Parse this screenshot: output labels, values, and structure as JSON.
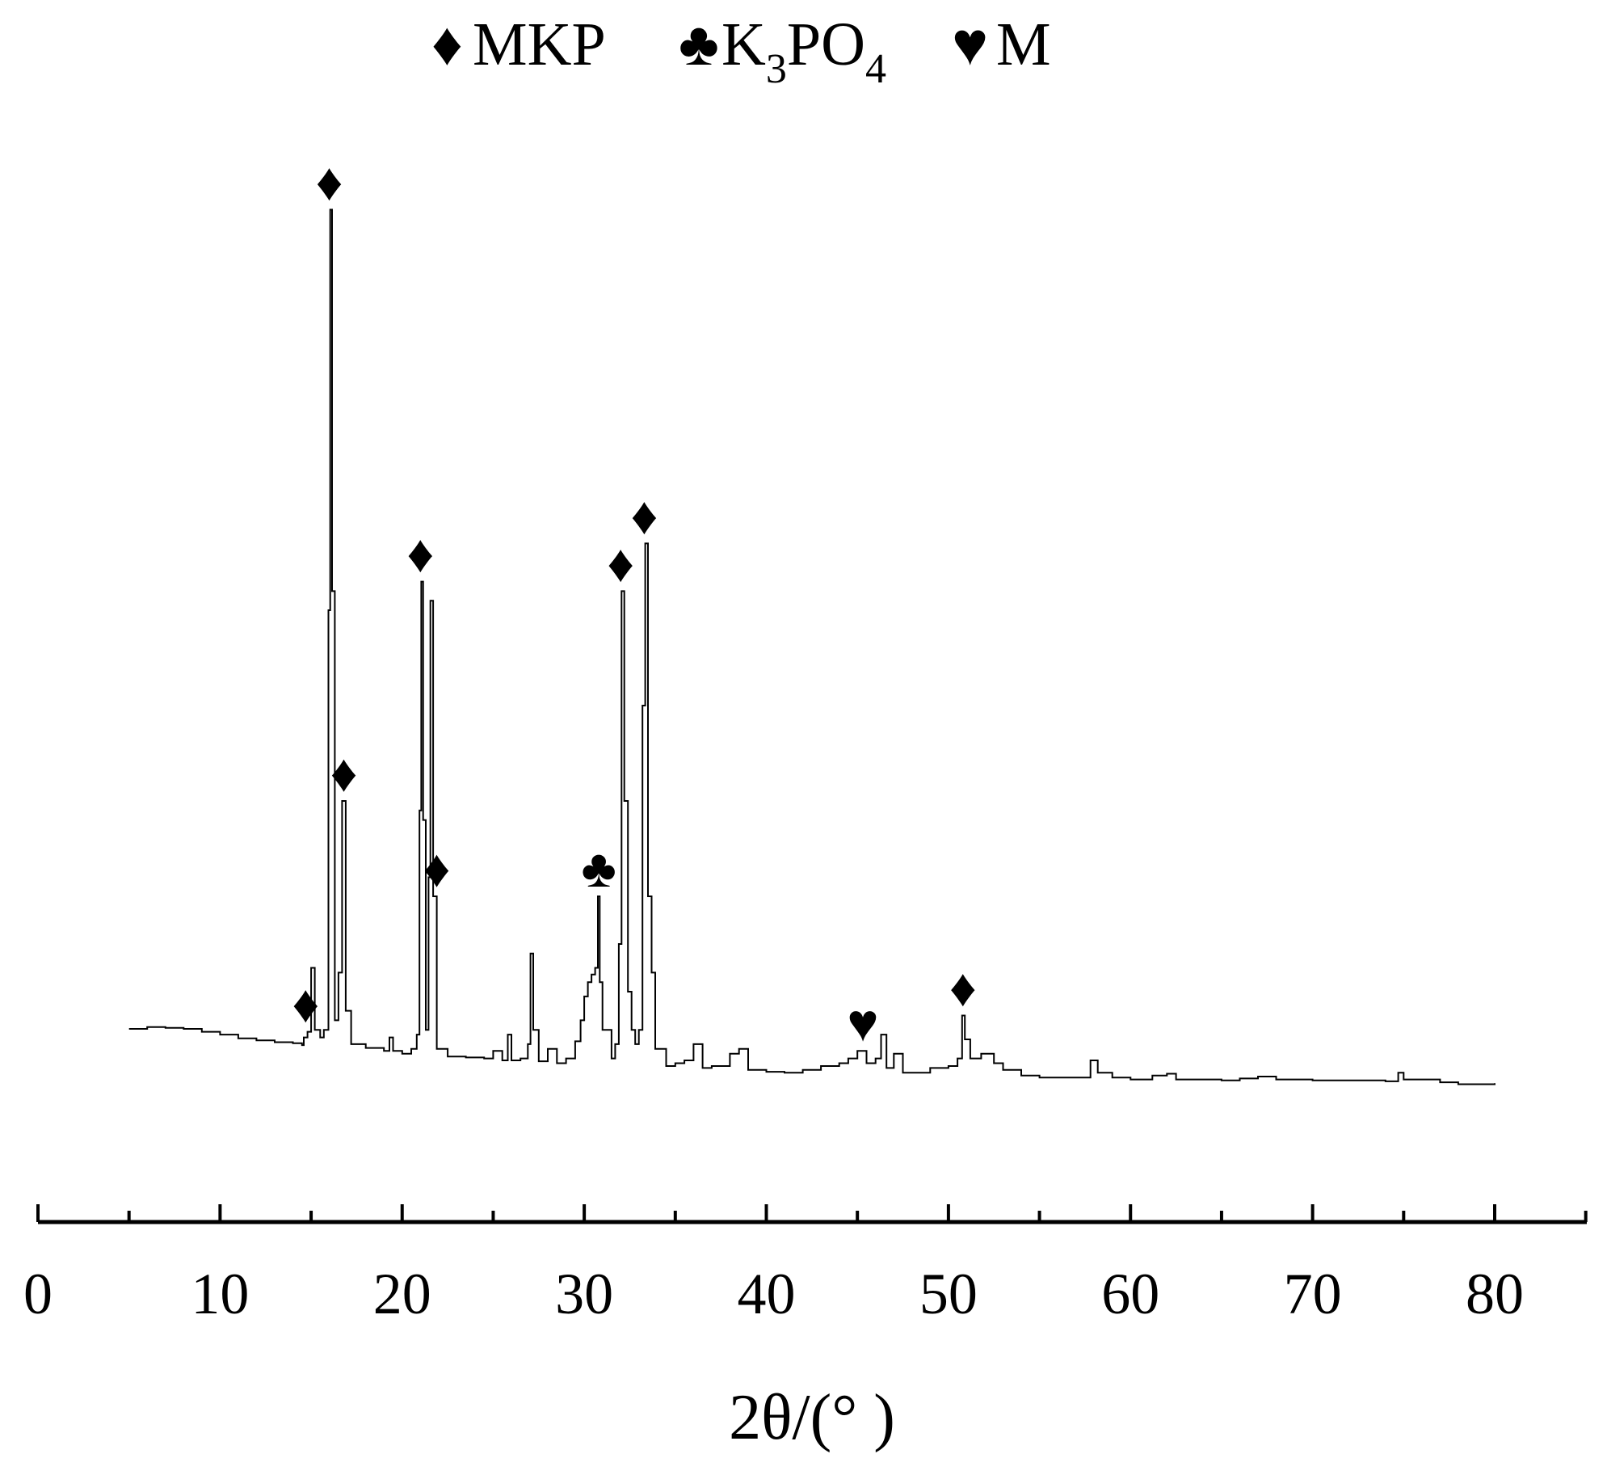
{
  "legend": {
    "items": [
      {
        "symbol": "♦",
        "label": "MKP",
        "sub": ""
      },
      {
        "symbol": "♣",
        "label": "K",
        "sub": "3",
        "label2": "PO",
        "sub2": "4"
      },
      {
        "symbol": "♥",
        "label": "M",
        "sub": ""
      }
    ]
  },
  "chart_data": {
    "type": "line",
    "xlabel": "2θ/(° )",
    "xlim": [
      0,
      85
    ],
    "x_ticks": [
      0,
      10,
      20,
      30,
      40,
      50,
      60,
      70,
      80
    ],
    "x_tick_labels": [
      "0",
      "10",
      "20",
      "30",
      "40",
      "50",
      "60",
      "70",
      "80"
    ],
    "ylim": [
      0,
      1000
    ],
    "y_axis_shown": false,
    "grid": false,
    "legend_position": "top-center",
    "series": [
      {
        "color": "#000000",
        "points": [
          [
            5,
            61
          ],
          [
            6,
            63
          ],
          [
            7,
            62
          ],
          [
            8,
            61
          ],
          [
            9,
            58
          ],
          [
            10,
            55
          ],
          [
            11,
            51
          ],
          [
            12,
            49
          ],
          [
            13,
            47
          ],
          [
            14,
            46
          ],
          [
            14.5,
            44
          ],
          [
            14.6,
            52
          ],
          [
            14.8,
            58
          ],
          [
            15.0,
            125
          ],
          [
            15.2,
            60
          ],
          [
            15.5,
            52
          ],
          [
            15.7,
            60
          ],
          [
            15.95,
            500
          ],
          [
            16.05,
            920
          ],
          [
            16.15,
            520
          ],
          [
            16.3,
            70
          ],
          [
            16.5,
            120
          ],
          [
            16.7,
            300
          ],
          [
            16.9,
            80
          ],
          [
            17.2,
            45
          ],
          [
            18,
            41
          ],
          [
            19,
            38
          ],
          [
            19.3,
            52
          ],
          [
            19.5,
            38
          ],
          [
            20,
            35
          ],
          [
            20.5,
            40
          ],
          [
            20.8,
            55
          ],
          [
            20.95,
            290
          ],
          [
            21.05,
            530
          ],
          [
            21.15,
            280
          ],
          [
            21.3,
            60
          ],
          [
            21.45,
            220
          ],
          [
            21.55,
            510
          ],
          [
            21.7,
            200
          ],
          [
            21.9,
            40
          ],
          [
            22.5,
            32
          ],
          [
            23.5,
            31
          ],
          [
            24.5,
            30
          ],
          [
            25,
            38
          ],
          [
            25.5,
            28
          ],
          [
            25.8,
            55
          ],
          [
            26,
            28
          ],
          [
            26.5,
            30
          ],
          [
            26.9,
            45
          ],
          [
            27.05,
            140
          ],
          [
            27.2,
            60
          ],
          [
            27.5,
            27
          ],
          [
            28,
            40
          ],
          [
            28.5,
            25
          ],
          [
            29,
            30
          ],
          [
            29.5,
            48
          ],
          [
            29.8,
            70
          ],
          [
            30.0,
            95
          ],
          [
            30.2,
            110
          ],
          [
            30.4,
            118
          ],
          [
            30.6,
            125
          ],
          [
            30.75,
            200
          ],
          [
            30.85,
            110
          ],
          [
            31,
            60
          ],
          [
            31.5,
            30
          ],
          [
            31.7,
            45
          ],
          [
            31.9,
            150
          ],
          [
            32.05,
            520
          ],
          [
            32.2,
            300
          ],
          [
            32.4,
            100
          ],
          [
            32.6,
            60
          ],
          [
            32.8,
            45
          ],
          [
            33.0,
            60
          ],
          [
            33.2,
            400
          ],
          [
            33.35,
            570
          ],
          [
            33.5,
            200
          ],
          [
            33.7,
            120
          ],
          [
            33.9,
            40
          ],
          [
            34.5,
            22
          ],
          [
            35,
            25
          ],
          [
            35.5,
            28
          ],
          [
            36,
            45
          ],
          [
            36.5,
            20
          ],
          [
            37,
            22
          ],
          [
            38,
            35
          ],
          [
            38.5,
            40
          ],
          [
            39,
            18
          ],
          [
            40,
            16
          ],
          [
            41,
            15
          ],
          [
            42,
            18
          ],
          [
            43,
            22
          ],
          [
            44,
            25
          ],
          [
            44.5,
            30
          ],
          [
            45,
            38
          ],
          [
            45.5,
            25
          ],
          [
            46,
            30
          ],
          [
            46.3,
            55
          ],
          [
            46.6,
            20
          ],
          [
            47,
            35
          ],
          [
            47.5,
            15
          ],
          [
            48,
            15
          ],
          [
            49,
            20
          ],
          [
            50,
            22
          ],
          [
            50.5,
            30
          ],
          [
            50.75,
            75
          ],
          [
            50.9,
            50
          ],
          [
            51.2,
            30
          ],
          [
            51.8,
            35
          ],
          [
            52.5,
            25
          ],
          [
            53,
            18
          ],
          [
            54,
            12
          ],
          [
            55,
            10
          ],
          [
            56,
            10
          ],
          [
            57,
            10
          ],
          [
            57.8,
            28
          ],
          [
            58.2,
            15
          ],
          [
            59,
            10
          ],
          [
            60,
            8
          ],
          [
            61.2,
            12
          ],
          [
            62,
            14
          ],
          [
            62.5,
            8
          ],
          [
            64,
            8
          ],
          [
            65,
            7
          ],
          [
            66,
            9
          ],
          [
            67,
            11
          ],
          [
            68,
            8
          ],
          [
            70,
            7
          ],
          [
            72,
            7
          ],
          [
            74,
            6
          ],
          [
            74.7,
            15
          ],
          [
            75,
            8
          ],
          [
            77,
            5
          ],
          [
            78,
            3
          ],
          [
            79,
            3
          ],
          [
            80,
            4
          ]
        ]
      }
    ],
    "annotations": [
      {
        "symbol": "♦",
        "x": 14.7
      },
      {
        "symbol": "♦",
        "x": 16.0
      },
      {
        "symbol": "♦",
        "x": 16.8
      },
      {
        "symbol": "♦",
        "x": 21.0
      },
      {
        "symbol": "♦",
        "x": 21.9
      },
      {
        "symbol": "♣",
        "x": 30.8
      },
      {
        "symbol": "♦",
        "x": 32.0
      },
      {
        "symbol": "♦",
        "x": 33.3
      },
      {
        "symbol": "♥",
        "x": 45.3
      },
      {
        "symbol": "♦",
        "x": 50.8
      }
    ]
  }
}
